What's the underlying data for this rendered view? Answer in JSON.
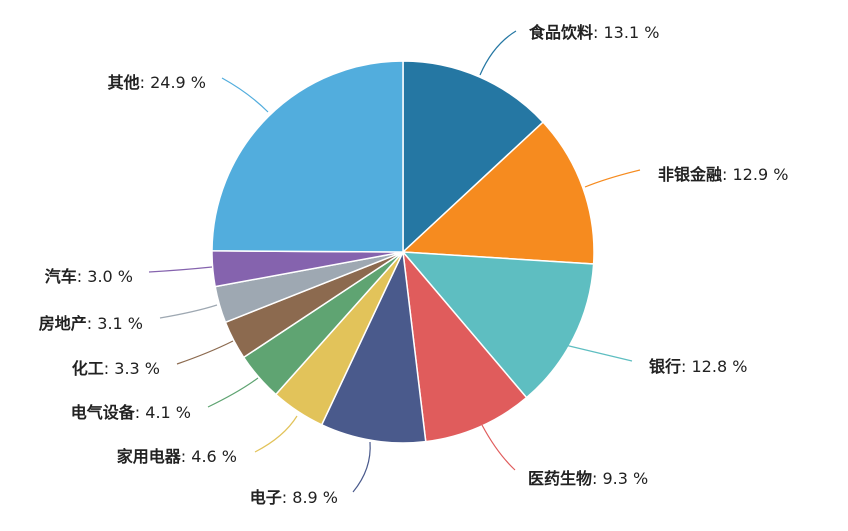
{
  "chart_data": {
    "type": "pie",
    "title": "",
    "unit": "%",
    "slices": [
      {
        "name": "食品饮料",
        "value": 13.1,
        "color": "#2577A3"
      },
      {
        "name": "非银金融",
        "value": 12.9,
        "color": "#F68B1F"
      },
      {
        "name": "银行",
        "value": 12.8,
        "color": "#5EBEC1"
      },
      {
        "name": "医药生物",
        "value": 9.3,
        "color": "#E05C5C"
      },
      {
        "name": "电子",
        "value": 8.9,
        "color": "#4A5A8C"
      },
      {
        "name": "家用电器",
        "value": 4.6,
        "color": "#E2C35A"
      },
      {
        "name": "电气设备",
        "value": 4.1,
        "color": "#5FA472"
      },
      {
        "name": "化工",
        "value": 3.3,
        "color": "#8C6A4F"
      },
      {
        "name": "房地产",
        "value": 3.1,
        "color": "#9EA8B2"
      },
      {
        "name": "汽车",
        "value": 3.0,
        "color": "#8563AE"
      },
      {
        "name": "其他",
        "value": 24.9,
        "color": "#52ADDD"
      }
    ],
    "labels": [
      {
        "category": "食品饮料",
        "value_text": ": 13.1 %"
      },
      {
        "category": "非银金融",
        "value_text": ": 12.9 %"
      },
      {
        "category": "银行",
        "value_text": ": 12.8 %"
      },
      {
        "category": "医药生物",
        "value_text": ": 9.3 %"
      },
      {
        "category": "电子",
        "value_text": ": 8.9 %"
      },
      {
        "category": "家用电器",
        "value_text": ": 4.6 %"
      },
      {
        "category": "电气设备",
        "value_text": ": 4.1 %"
      },
      {
        "category": "化工",
        "value_text": ": 3.3 %"
      },
      {
        "category": "房地产",
        "value_text": ": 3.1 %"
      },
      {
        "category": "汽车",
        "value_text": ": 3.0 %"
      },
      {
        "category": "其他",
        "value_text": ": 24.9 %"
      }
    ],
    "legend": "none",
    "start_angle": "12 o'clock",
    "direction": "clockwise"
  }
}
